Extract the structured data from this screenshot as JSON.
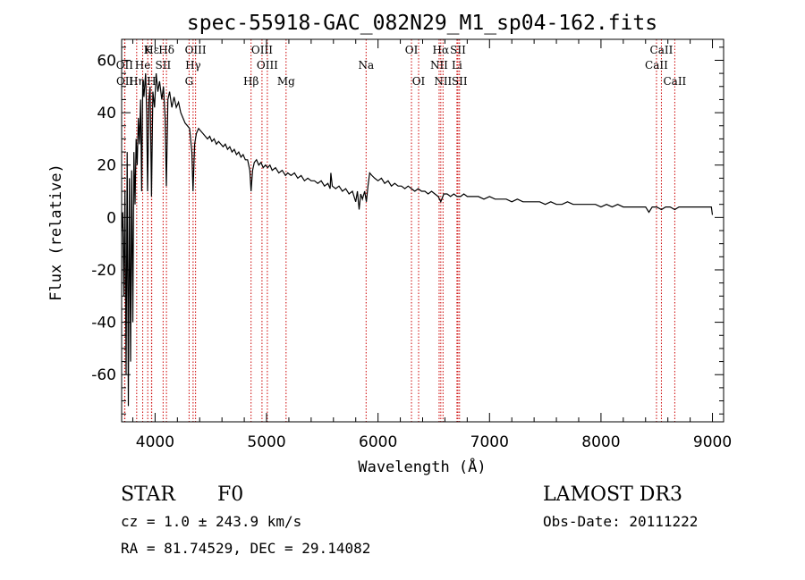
{
  "chart_data": {
    "type": "line",
    "title": "spec-55918-GAC_082N29_M1_sp04-162.fits",
    "xlabel": "Wavelength (Å)",
    "ylabel": "Flux (relative)",
    "xlim": [
      3700,
      9100
    ],
    "ylim": [
      -78,
      68
    ],
    "xticks": [
      4000,
      5000,
      6000,
      7000,
      8000,
      9000
    ],
    "yticks": [
      -60,
      -40,
      -20,
      0,
      20,
      40,
      60
    ],
    "grid": false,
    "line_color": "#000000",
    "marker_color": "#cc0000",
    "spectrum": [
      [
        3700,
        -5
      ],
      [
        3710,
        2
      ],
      [
        3720,
        -30
      ],
      [
        3730,
        10
      ],
      [
        3740,
        -60
      ],
      [
        3750,
        25
      ],
      [
        3760,
        -72
      ],
      [
        3770,
        15
      ],
      [
        3780,
        -55
      ],
      [
        3790,
        18
      ],
      [
        3800,
        -40
      ],
      [
        3810,
        25
      ],
      [
        3820,
        5
      ],
      [
        3830,
        30
      ],
      [
        3840,
        20
      ],
      [
        3850,
        38
      ],
      [
        3860,
        28
      ],
      [
        3870,
        45
      ],
      [
        3880,
        10
      ],
      [
        3889,
        52
      ],
      [
        3900,
        46
      ],
      [
        3915,
        55
      ],
      [
        3925,
        40
      ],
      [
        3933,
        10
      ],
      [
        3945,
        45
      ],
      [
        3955,
        50
      ],
      [
        3968,
        8
      ],
      [
        3980,
        48
      ],
      [
        3995,
        42
      ],
      [
        4010,
        55
      ],
      [
        4025,
        48
      ],
      [
        4040,
        52
      ],
      [
        4060,
        45
      ],
      [
        4075,
        50
      ],
      [
        4090,
        38
      ],
      [
        4101,
        12
      ],
      [
        4115,
        45
      ],
      [
        4130,
        48
      ],
      [
        4150,
        42
      ],
      [
        4170,
        46
      ],
      [
        4190,
        42
      ],
      [
        4210,
        44
      ],
      [
        4230,
        40
      ],
      [
        4250,
        38
      ],
      [
        4270,
        36
      ],
      [
        4290,
        35
      ],
      [
        4310,
        34
      ],
      [
        4330,
        25
      ],
      [
        4340,
        10
      ],
      [
        4355,
        28
      ],
      [
        4370,
        32
      ],
      [
        4390,
        34
      ],
      [
        4410,
        33
      ],
      [
        4430,
        32
      ],
      [
        4450,
        31
      ],
      [
        4470,
        30
      ],
      [
        4490,
        31
      ],
      [
        4510,
        29
      ],
      [
        4530,
        30
      ],
      [
        4550,
        28
      ],
      [
        4570,
        29
      ],
      [
        4590,
        28
      ],
      [
        4610,
        27
      ],
      [
        4630,
        28
      ],
      [
        4650,
        26
      ],
      [
        4670,
        27
      ],
      [
        4690,
        25
      ],
      [
        4710,
        26
      ],
      [
        4730,
        24
      ],
      [
        4750,
        25
      ],
      [
        4770,
        23
      ],
      [
        4790,
        24
      ],
      [
        4810,
        22
      ],
      [
        4830,
        22
      ],
      [
        4850,
        18
      ],
      [
        4861,
        10
      ],
      [
        4875,
        18
      ],
      [
        4890,
        21
      ],
      [
        4910,
        22
      ],
      [
        4930,
        20
      ],
      [
        4950,
        21
      ],
      [
        4970,
        19
      ],
      [
        4990,
        20
      ],
      [
        5010,
        19
      ],
      [
        5030,
        20
      ],
      [
        5050,
        18
      ],
      [
        5080,
        19
      ],
      [
        5110,
        17
      ],
      [
        5140,
        18
      ],
      [
        5170,
        16
      ],
      [
        5190,
        17
      ],
      [
        5220,
        16
      ],
      [
        5250,
        17
      ],
      [
        5280,
        15
      ],
      [
        5310,
        16
      ],
      [
        5340,
        14
      ],
      [
        5370,
        15
      ],
      [
        5400,
        14
      ],
      [
        5430,
        14
      ],
      [
        5460,
        13
      ],
      [
        5490,
        14
      ],
      [
        5520,
        12
      ],
      [
        5550,
        13
      ],
      [
        5570,
        11
      ],
      [
        5577,
        17
      ],
      [
        5590,
        12
      ],
      [
        5620,
        11
      ],
      [
        5650,
        12
      ],
      [
        5680,
        10
      ],
      [
        5710,
        11
      ],
      [
        5740,
        9
      ],
      [
        5770,
        10
      ],
      [
        5800,
        6
      ],
      [
        5815,
        10
      ],
      [
        5830,
        3
      ],
      [
        5845,
        9
      ],
      [
        5860,
        7
      ],
      [
        5880,
        10
      ],
      [
        5895,
        6
      ],
      [
        5910,
        12
      ],
      [
        5925,
        17
      ],
      [
        5945,
        16
      ],
      [
        5970,
        15
      ],
      [
        6000,
        14
      ],
      [
        6030,
        15
      ],
      [
        6060,
        13
      ],
      [
        6090,
        14
      ],
      [
        6120,
        12
      ],
      [
        6150,
        13
      ],
      [
        6180,
        12
      ],
      [
        6210,
        12
      ],
      [
        6240,
        11
      ],
      [
        6270,
        12
      ],
      [
        6300,
        11
      ],
      [
        6330,
        10
      ],
      [
        6360,
        11
      ],
      [
        6390,
        10
      ],
      [
        6420,
        10
      ],
      [
        6450,
        9
      ],
      [
        6480,
        10
      ],
      [
        6510,
        9
      ],
      [
        6540,
        8
      ],
      [
        6563,
        6
      ],
      [
        6590,
        9
      ],
      [
        6620,
        9
      ],
      [
        6650,
        8
      ],
      [
        6680,
        9
      ],
      [
        6710,
        8
      ],
      [
        6740,
        8
      ],
      [
        6770,
        9
      ],
      [
        6800,
        8
      ],
      [
        6850,
        8
      ],
      [
        6900,
        8
      ],
      [
        6950,
        7
      ],
      [
        7000,
        8
      ],
      [
        7050,
        7
      ],
      [
        7100,
        7
      ],
      [
        7150,
        7
      ],
      [
        7200,
        6
      ],
      [
        7250,
        7
      ],
      [
        7300,
        6
      ],
      [
        7350,
        6
      ],
      [
        7400,
        6
      ],
      [
        7450,
        6
      ],
      [
        7500,
        5
      ],
      [
        7550,
        6
      ],
      [
        7600,
        5
      ],
      [
        7650,
        5
      ],
      [
        7700,
        6
      ],
      [
        7750,
        5
      ],
      [
        7800,
        5
      ],
      [
        7850,
        5
      ],
      [
        7900,
        5
      ],
      [
        7950,
        5
      ],
      [
        8000,
        4
      ],
      [
        8050,
        5
      ],
      [
        8100,
        4
      ],
      [
        8150,
        5
      ],
      [
        8200,
        4
      ],
      [
        8250,
        4
      ],
      [
        8300,
        4
      ],
      [
        8350,
        4
      ],
      [
        8400,
        4
      ],
      [
        8430,
        2
      ],
      [
        8460,
        4
      ],
      [
        8500,
        4
      ],
      [
        8542,
        3
      ],
      [
        8580,
        4
      ],
      [
        8620,
        4
      ],
      [
        8662,
        3
      ],
      [
        8700,
        4
      ],
      [
        8750,
        4
      ],
      [
        8800,
        4
      ],
      [
        8850,
        4
      ],
      [
        8900,
        4
      ],
      [
        8950,
        4
      ],
      [
        8990,
        4
      ],
      [
        9000,
        1
      ]
    ],
    "line_markers": [
      {
        "label": "Hε",
        "wavelength": 3970,
        "row": 0
      },
      {
        "label": "K",
        "wavelength": 3934,
        "row": 0
      },
      {
        "label": "Hδ",
        "wavelength": 4102,
        "row": 0
      },
      {
        "label": "OIII",
        "wavelength": 4363,
        "row": 0
      },
      {
        "label": "OIII",
        "wavelength": 4959,
        "row": 0
      },
      {
        "label": "OI",
        "wavelength": 6300,
        "row": 0
      },
      {
        "label": "Hα",
        "wavelength": 6563,
        "row": 0
      },
      {
        "label": "SII",
        "wavelength": 6717,
        "row": 0
      },
      {
        "label": "CaII",
        "wavelength": 8542,
        "row": 0
      },
      {
        "label": "OII",
        "wavelength": 3727,
        "row": 1
      },
      {
        "label": "He",
        "wavelength": 3889,
        "row": 1
      },
      {
        "label": "SII",
        "wavelength": 4072,
        "row": 1
      },
      {
        "label": "Hγ",
        "wavelength": 4341,
        "row": 1
      },
      {
        "label": "OIII",
        "wavelength": 5007,
        "row": 1
      },
      {
        "label": "Na",
        "wavelength": 5893,
        "row": 1
      },
      {
        "label": "NII",
        "wavelength": 6548,
        "row": 1
      },
      {
        "label": "Li",
        "wavelength": 6708,
        "row": 1
      },
      {
        "label": "CaII",
        "wavelength": 8498,
        "row": 1
      },
      {
        "label": "OII",
        "wavelength": 3729,
        "row": 2
      },
      {
        "label": "Hη",
        "wavelength": 3835,
        "row": 2
      },
      {
        "label": "H",
        "wavelength": 3968,
        "row": 2
      },
      {
        "label": "G",
        "wavelength": 4305,
        "row": 2
      },
      {
        "label": "Hβ",
        "wavelength": 4861,
        "row": 2
      },
      {
        "label": "Mg",
        "wavelength": 5175,
        "row": 2
      },
      {
        "label": "OI",
        "wavelength": 6364,
        "row": 2
      },
      {
        "label": "NII",
        "wavelength": 6583,
        "row": 2
      },
      {
        "label": "SII",
        "wavelength": 6731,
        "row": 2
      },
      {
        "label": "CaII",
        "wavelength": 8662,
        "row": 2
      }
    ]
  },
  "info": {
    "class": "STAR",
    "subclass": "F0",
    "survey": "LAMOST DR3",
    "cz": "cz = 1.0 ± 243.9 km/s",
    "obs_date": "Obs-Date: 20111222",
    "coords": "RA =  81.74529, DEC =  29.14082"
  }
}
